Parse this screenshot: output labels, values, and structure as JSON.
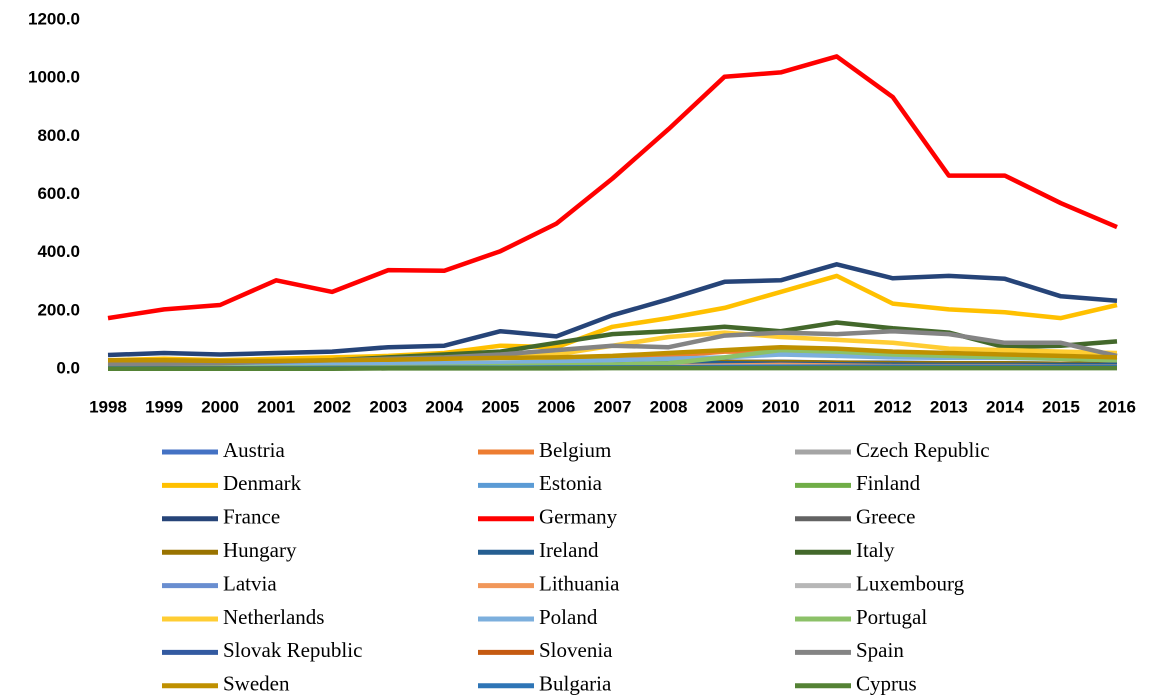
{
  "chart_data": {
    "type": "line",
    "categories": [
      "1998",
      "1999",
      "2000",
      "2001",
      "2002",
      "2003",
      "2004",
      "2005",
      "2006",
      "2007",
      "2008",
      "2009",
      "2010",
      "2011",
      "2012",
      "2013",
      "2014",
      "2015",
      "2016"
    ],
    "ylim": [
      0,
      1200
    ],
    "yticks": [
      {
        "value": 0,
        "label": "0.0"
      },
      {
        "value": 200,
        "label": "200.0"
      },
      {
        "value": 400,
        "label": "400.0"
      },
      {
        "value": 600,
        "label": "600.0"
      },
      {
        "value": 800,
        "label": "800.0"
      },
      {
        "value": 1000,
        "label": "1000.0"
      },
      {
        "value": 1200,
        "label": "1200.0"
      }
    ],
    "grid": false,
    "legend": "bottom",
    "series": [
      {
        "name": "Austria",
        "color": "#4472c4",
        "values": [
          10,
          10,
          12,
          12,
          12,
          14,
          15,
          15,
          18,
          20,
          22,
          25,
          25,
          22,
          22,
          20,
          20,
          18,
          18
        ]
      },
      {
        "name": "Belgium",
        "color": "#ed7d31",
        "values": [
          8,
          8,
          10,
          10,
          12,
          14,
          15,
          20,
          25,
          35,
          45,
          60,
          60,
          45,
          55,
          50,
          45,
          40,
          40
        ]
      },
      {
        "name": "Czech Republic",
        "color": "#a5a5a5",
        "values": [
          5,
          5,
          5,
          6,
          6,
          8,
          8,
          10,
          12,
          15,
          18,
          20,
          22,
          20,
          20,
          18,
          18,
          16,
          15
        ]
      },
      {
        "name": "Denmark",
        "color": "#ffc000",
        "values": [
          30,
          35,
          30,
          35,
          40,
          45,
          55,
          80,
          75,
          145,
          175,
          210,
          265,
          320,
          225,
          205,
          195,
          175,
          220
        ]
      },
      {
        "name": "Estonia",
        "color": "#5b9bd5",
        "values": [
          2,
          2,
          2,
          3,
          3,
          3,
          4,
          4,
          5,
          6,
          6,
          7,
          7,
          6,
          6,
          6,
          5,
          5,
          5
        ]
      },
      {
        "name": "Finland",
        "color": "#70ad47",
        "values": [
          5,
          5,
          5,
          6,
          6,
          7,
          8,
          8,
          10,
          12,
          14,
          16,
          16,
          15,
          15,
          14,
          14,
          13,
          12
        ]
      },
      {
        "name": "France",
        "color": "#264478",
        "values": [
          48,
          55,
          50,
          55,
          60,
          75,
          80,
          130,
          112,
          185,
          240,
          300,
          305,
          360,
          312,
          320,
          310,
          250,
          235
        ]
      },
      {
        "name": "Germany",
        "color": "#ff0000",
        "values": [
          175,
          205,
          220,
          305,
          265,
          340,
          338,
          405,
          500,
          655,
          825,
          1005,
          1020,
          1075,
          935,
          665,
          665,
          570,
          488
        ]
      },
      {
        "name": "Greece",
        "color": "#636363",
        "values": [
          5,
          5,
          6,
          6,
          7,
          8,
          8,
          9,
          10,
          12,
          12,
          14,
          14,
          12,
          10,
          8,
          8,
          7,
          6
        ]
      },
      {
        "name": "Hungary",
        "color": "#997300",
        "values": [
          10,
          10,
          10,
          12,
          12,
          14,
          15,
          16,
          18,
          20,
          22,
          24,
          24,
          22,
          20,
          20,
          20,
          18,
          18
        ]
      },
      {
        "name": "Ireland",
        "color": "#255e91",
        "values": [
          10,
          10,
          12,
          14,
          15,
          18,
          20,
          20,
          22,
          25,
          25,
          20,
          18,
          16,
          15,
          14,
          14,
          14,
          14
        ]
      },
      {
        "name": "Italy",
        "color": "#43682b",
        "values": [
          10,
          12,
          15,
          20,
          30,
          40,
          50,
          60,
          90,
          120,
          130,
          145,
          130,
          160,
          140,
          125,
          75,
          80,
          95
        ]
      },
      {
        "name": "Latvia",
        "color": "#698ed0",
        "values": [
          2,
          2,
          2,
          2,
          3,
          3,
          3,
          4,
          4,
          5,
          5,
          6,
          6,
          5,
          5,
          5,
          5,
          5,
          5
        ]
      },
      {
        "name": "Lithuania",
        "color": "#f1975a",
        "values": [
          2,
          2,
          3,
          3,
          3,
          4,
          4,
          5,
          6,
          8,
          10,
          12,
          14,
          12,
          10,
          10,
          10,
          9,
          9
        ]
      },
      {
        "name": "Luxembourg",
        "color": "#b7b7b7",
        "values": [
          3,
          3,
          3,
          4,
          4,
          4,
          5,
          5,
          6,
          7,
          8,
          9,
          9,
          8,
          8,
          8,
          8,
          8,
          8
        ]
      },
      {
        "name": "Netherlands",
        "color": "#ffcd33",
        "values": [
          20,
          20,
          20,
          22,
          25,
          30,
          35,
          40,
          50,
          80,
          110,
          125,
          110,
          100,
          90,
          70,
          65,
          60,
          55
        ]
      },
      {
        "name": "Poland",
        "color": "#7cafdd",
        "values": [
          10,
          10,
          12,
          14,
          15,
          18,
          20,
          22,
          25,
          30,
          35,
          40,
          50,
          45,
          40,
          38,
          38,
          35,
          30
        ]
      },
      {
        "name": "Portugal",
        "color": "#8cc168",
        "values": [
          3,
          3,
          4,
          5,
          5,
          6,
          8,
          10,
          12,
          15,
          20,
          40,
          65,
          60,
          50,
          45,
          40,
          35,
          30
        ]
      },
      {
        "name": "Slovak Republic",
        "color": "#335aa1",
        "values": [
          2,
          2,
          2,
          3,
          3,
          3,
          4,
          4,
          5,
          5,
          6,
          7,
          7,
          6,
          6,
          6,
          6,
          5,
          5
        ]
      },
      {
        "name": "Slovenia",
        "color": "#c55a11",
        "values": [
          2,
          2,
          2,
          2,
          3,
          3,
          3,
          3,
          4,
          4,
          5,
          5,
          5,
          5,
          4,
          4,
          4,
          4,
          4
        ]
      },
      {
        "name": "Spain",
        "color": "#848484",
        "values": [
          15,
          18,
          20,
          25,
          30,
          35,
          40,
          50,
          65,
          80,
          75,
          115,
          125,
          120,
          130,
          120,
          90,
          90,
          45
        ]
      },
      {
        "name": "Sweden",
        "color": "#bf9000",
        "values": [
          30,
          30,
          28,
          28,
          30,
          32,
          35,
          38,
          40,
          45,
          55,
          65,
          75,
          70,
          60,
          55,
          50,
          45,
          40
        ]
      },
      {
        "name": "Bulgaria",
        "color": "#2e75b6",
        "values": [
          2,
          2,
          2,
          2,
          3,
          3,
          3,
          4,
          4,
          5,
          5,
          6,
          8,
          8,
          8,
          8,
          8,
          8,
          8
        ]
      },
      {
        "name": "Cyprus",
        "color": "#548235",
        "values": [
          1,
          1,
          1,
          1,
          1,
          2,
          2,
          2,
          2,
          3,
          3,
          3,
          3,
          3,
          3,
          3,
          3,
          3,
          3
        ]
      }
    ]
  }
}
